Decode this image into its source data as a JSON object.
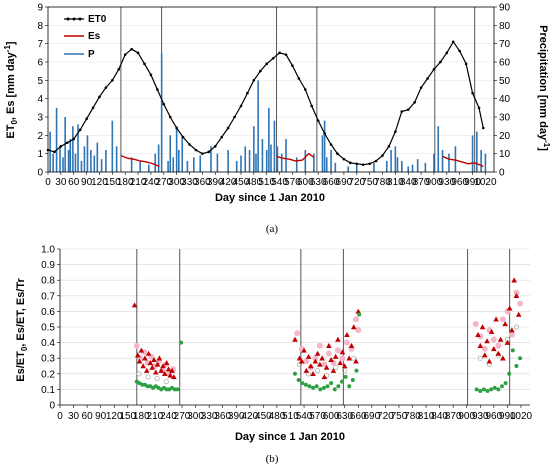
{
  "colors": {
    "et0": "#000000",
    "es": "#c00000",
    "p": "#2e75b6",
    "ratio_red": "#c00000",
    "ratio_pink": "#f4b6c9",
    "ratio_green": "#2ea043",
    "ratio_gray": "#b0b0b0",
    "event_line": "#444444"
  },
  "chart_data": [
    {
      "type": "line",
      "panel_label": "(a)",
      "xlabel": "Day since  1 Jan 2010",
      "ylabel_base": "ET",
      "ylabel_sub": "0",
      "ylabel_tail": ", Es [mm day",
      "ylabel_sup": "-1",
      "ylabel_end": "]",
      "y2label_base": "Precipitation [mm day",
      "y2label_sup": "-1",
      "y2label_end": "]",
      "xlim": [
        0,
        1040
      ],
      "xticks": [
        0,
        30,
        60,
        90,
        120,
        150,
        180,
        210,
        240,
        270,
        300,
        330,
        360,
        390,
        420,
        450,
        480,
        510,
        540,
        570,
        600,
        630,
        660,
        690,
        720,
        750,
        780,
        810,
        840,
        870,
        900,
        930,
        960,
        990,
        1020
      ],
      "ylim": [
        0,
        9
      ],
      "yticks": [
        0,
        1,
        2,
        3,
        4,
        5,
        6,
        7,
        8,
        9
      ],
      "y2lim": [
        0,
        90
      ],
      "y2ticks": [
        0,
        10,
        20,
        30,
        40,
        50,
        60,
        70,
        80,
        90
      ],
      "legend_position": "top-left",
      "event_lines_x": [
        170,
        265,
        533,
        627,
        902,
        995
      ],
      "series": [
        {
          "name": "ET0",
          "axis": "left",
          "style": "line-markers",
          "x": [
            0,
            15,
            30,
            45,
            60,
            75,
            90,
            105,
            120,
            135,
            150,
            165,
            180,
            195,
            210,
            225,
            240,
            255,
            270,
            285,
            300,
            315,
            330,
            345,
            360,
            375,
            390,
            405,
            420,
            435,
            450,
            465,
            480,
            495,
            510,
            525,
            540,
            555,
            570,
            585,
            600,
            615,
            630,
            645,
            660,
            675,
            690,
            705,
            720,
            735,
            750,
            765,
            780,
            795,
            810,
            825,
            840,
            855,
            870,
            885,
            900,
            915,
            930,
            945,
            960,
            975,
            990,
            1005,
            1015
          ],
          "y": [
            1.2,
            1.1,
            1.4,
            1.6,
            1.8,
            2.3,
            2.9,
            3.5,
            4.1,
            4.6,
            5.0,
            5.6,
            6.4,
            6.7,
            6.5,
            5.9,
            5.3,
            4.5,
            3.7,
            3.0,
            2.4,
            1.9,
            1.5,
            1.2,
            1.0,
            1.1,
            1.4,
            1.9,
            2.4,
            3.0,
            3.6,
            4.3,
            5.0,
            5.5,
            5.9,
            6.2,
            6.5,
            6.4,
            5.8,
            5.1,
            4.5,
            3.6,
            2.8,
            2.1,
            1.5,
            1.0,
            0.7,
            0.5,
            0.45,
            0.4,
            0.45,
            0.6,
            0.9,
            1.4,
            2.2,
            3.3,
            3.4,
            3.8,
            4.6,
            5.1,
            5.6,
            6.0,
            6.5,
            7.1,
            6.6,
            5.9,
            4.3,
            3.5,
            2.4
          ]
        },
        {
          "name": "Es",
          "axis": "left",
          "style": "line",
          "segments": [
            {
              "x": [
                170,
                185,
                200,
                215,
                230,
                245,
                260
              ],
              "y": [
                0.9,
                0.75,
                0.7,
                0.6,
                0.55,
                0.45,
                0.3
              ]
            },
            {
              "x": [
                533,
                548,
                563,
                578,
                593,
                608,
                620
              ],
              "y": [
                0.85,
                0.75,
                0.7,
                0.6,
                0.65,
                1.0,
                0.8
              ]
            },
            {
              "x": [
                920,
                935,
                950,
                965,
                980,
                995,
                1005,
                1015
              ],
              "y": [
                0.85,
                0.7,
                0.65,
                0.55,
                0.45,
                0.5,
                0.4,
                0.3
              ]
            }
          ]
        },
        {
          "name": "P",
          "axis": "right",
          "style": "bars",
          "x": [
            5,
            12,
            20,
            28,
            35,
            40,
            48,
            52,
            58,
            64,
            70,
            78,
            85,
            92,
            100,
            108,
            115,
            125,
            135,
            150,
            160,
            195,
            215,
            235,
            250,
            258,
            265,
            280,
            285,
            292,
            300,
            305,
            313,
            325,
            340,
            355,
            380,
            395,
            420,
            440,
            450,
            460,
            470,
            480,
            485,
            490,
            500,
            510,
            515,
            520,
            528,
            535,
            545,
            555,
            580,
            600,
            620,
            640,
            645,
            650,
            660,
            670,
            700,
            720,
            760,
            790,
            800,
            810,
            815,
            825,
            840,
            850,
            862,
            880,
            900,
            910,
            920,
            935,
            950,
            990,
            1000,
            1010,
            1020
          ],
          "y": [
            22,
            10,
            35,
            14,
            8,
            30,
            12,
            18,
            25,
            10,
            26,
            6,
            14,
            20,
            12,
            9,
            16,
            7,
            12,
            28,
            14,
            8,
            6,
            4,
            10,
            15,
            65,
            6,
            20,
            8,
            25,
            12,
            20,
            6,
            8,
            9,
            14,
            10,
            12,
            6,
            9,
            14,
            12,
            25,
            10,
            50,
            18,
            12,
            35,
            15,
            28,
            14,
            10,
            18,
            8,
            12,
            10,
            20,
            28,
            8,
            12,
            5,
            3,
            4,
            5,
            6,
            12,
            14,
            8,
            6,
            3,
            4,
            7,
            5,
            10,
            25,
            12,
            10,
            14,
            20,
            22,
            12,
            10
          ]
        }
      ]
    },
    {
      "type": "scatter",
      "panel_label": "(b)",
      "xlabel": "Day since  1 Jan 2010",
      "ylabel_base": "Es/ET",
      "ylabel_sub": "0",
      "ylabel_tail": ", Es/ET, Es/Tr",
      "xlim": [
        0,
        1040
      ],
      "xticks": [
        0,
        30,
        60,
        90,
        120,
        150,
        180,
        210,
        240,
        270,
        300,
        330,
        360,
        390,
        420,
        450,
        480,
        510,
        540,
        570,
        600,
        630,
        660,
        690,
        720,
        750,
        780,
        810,
        840,
        870,
        900,
        930,
        960,
        990,
        1020
      ],
      "ylim": [
        0,
        1
      ],
      "yticks": [
        0,
        0.1,
        0.2,
        0.3,
        0.4,
        0.5,
        0.6,
        0.7,
        0.8,
        0.9,
        1.0
      ],
      "ytick_labels": [
        "0",
        "0.1",
        "0.2",
        "0.3",
        "0.4",
        "0.5",
        "0.6",
        "0.7",
        "0.8",
        "0.9",
        "1.0"
      ],
      "event_lines_x": [
        170,
        265,
        533,
        627,
        902,
        995
      ],
      "series": [
        {
          "marker": "triangle",
          "color": "red",
          "x": [
            165,
            172,
            176,
            180,
            184,
            188,
            192,
            196,
            200,
            204,
            208,
            212,
            216,
            220,
            224,
            228,
            232,
            236,
            240,
            244,
            248,
            252,
            520,
            530,
            535,
            540,
            545,
            550,
            555,
            560,
            565,
            570,
            575,
            580,
            585,
            590,
            595,
            600,
            605,
            610,
            615,
            620,
            625,
            630,
            635,
            640,
            645,
            650,
            655,
            660,
            925,
            930,
            935,
            940,
            945,
            950,
            955,
            960,
            965,
            970,
            975,
            980,
            985,
            990,
            995,
            1000,
            1005,
            1010,
            1015
          ],
          "y": [
            0.64,
            0.32,
            0.28,
            0.35,
            0.25,
            0.3,
            0.22,
            0.33,
            0.27,
            0.24,
            0.29,
            0.21,
            0.26,
            0.3,
            0.22,
            0.25,
            0.2,
            0.27,
            0.23,
            0.19,
            0.22,
            0.18,
            0.42,
            0.3,
            0.28,
            0.35,
            0.22,
            0.31,
            0.25,
            0.2,
            0.28,
            0.33,
            0.26,
            0.3,
            0.18,
            0.24,
            0.38,
            0.29,
            0.22,
            0.31,
            0.42,
            0.27,
            0.34,
            0.25,
            0.45,
            0.3,
            0.38,
            0.5,
            0.28,
            0.6,
            0.45,
            0.38,
            0.5,
            0.32,
            0.41,
            0.28,
            0.47,
            0.36,
            0.55,
            0.33,
            0.42,
            0.3,
            0.52,
            0.4,
            0.62,
            0.48,
            0.8,
            0.7,
            0.58
          ]
        },
        {
          "marker": "circle",
          "color": "pink",
          "x": [
            170,
            178,
            186,
            194,
            202,
            210,
            218,
            226,
            234,
            242,
            250,
            525,
            535,
            545,
            555,
            565,
            575,
            585,
            595,
            605,
            615,
            625,
            635,
            645,
            655,
            660,
            920,
            930,
            940,
            950,
            960,
            970,
            980,
            990,
            1000,
            1010,
            1018
          ],
          "y": [
            0.38,
            0.3,
            0.34,
            0.27,
            0.31,
            0.25,
            0.28,
            0.22,
            0.26,
            0.2,
            0.23,
            0.46,
            0.36,
            0.28,
            0.24,
            0.3,
            0.38,
            0.26,
            0.33,
            0.27,
            0.35,
            0.3,
            0.4,
            0.36,
            0.55,
            0.48,
            0.52,
            0.44,
            0.36,
            0.48,
            0.42,
            0.38,
            0.55,
            0.6,
            0.45,
            0.72,
            0.65
          ]
        },
        {
          "marker": "circle",
          "color": "green",
          "x": [
            170,
            176,
            182,
            188,
            194,
            200,
            206,
            212,
            218,
            224,
            230,
            236,
            242,
            248,
            254,
            260,
            268,
            520,
            528,
            536,
            544,
            552,
            560,
            568,
            576,
            584,
            592,
            600,
            608,
            616,
            624,
            632,
            640,
            648,
            656,
            662,
            922,
            930,
            938,
            946,
            954,
            962,
            970,
            978,
            986,
            994,
            1002,
            1010,
            1018
          ],
          "y": [
            0.15,
            0.14,
            0.13,
            0.13,
            0.12,
            0.12,
            0.11,
            0.12,
            0.11,
            0.1,
            0.11,
            0.1,
            0.1,
            0.11,
            0.1,
            0.1,
            0.4,
            0.2,
            0.16,
            0.14,
            0.13,
            0.12,
            0.11,
            0.12,
            0.1,
            0.11,
            0.12,
            0.14,
            0.1,
            0.12,
            0.15,
            0.18,
            0.12,
            0.16,
            0.22,
            0.58,
            0.1,
            0.09,
            0.1,
            0.09,
            0.1,
            0.11,
            0.1,
            0.12,
            0.14,
            0.2,
            0.35,
            0.25,
            0.3
          ]
        },
        {
          "marker": "circle-open",
          "color": "gray",
          "x": [
            175,
            195,
            215,
            235,
            530,
            550,
            570,
            590,
            610,
            630,
            650,
            930,
            950,
            970,
            990,
            1010
          ],
          "y": [
            0.2,
            0.18,
            0.17,
            0.15,
            0.26,
            0.2,
            0.22,
            0.19,
            0.24,
            0.22,
            0.3,
            0.3,
            0.26,
            0.32,
            0.42,
            0.5
          ]
        }
      ]
    }
  ]
}
